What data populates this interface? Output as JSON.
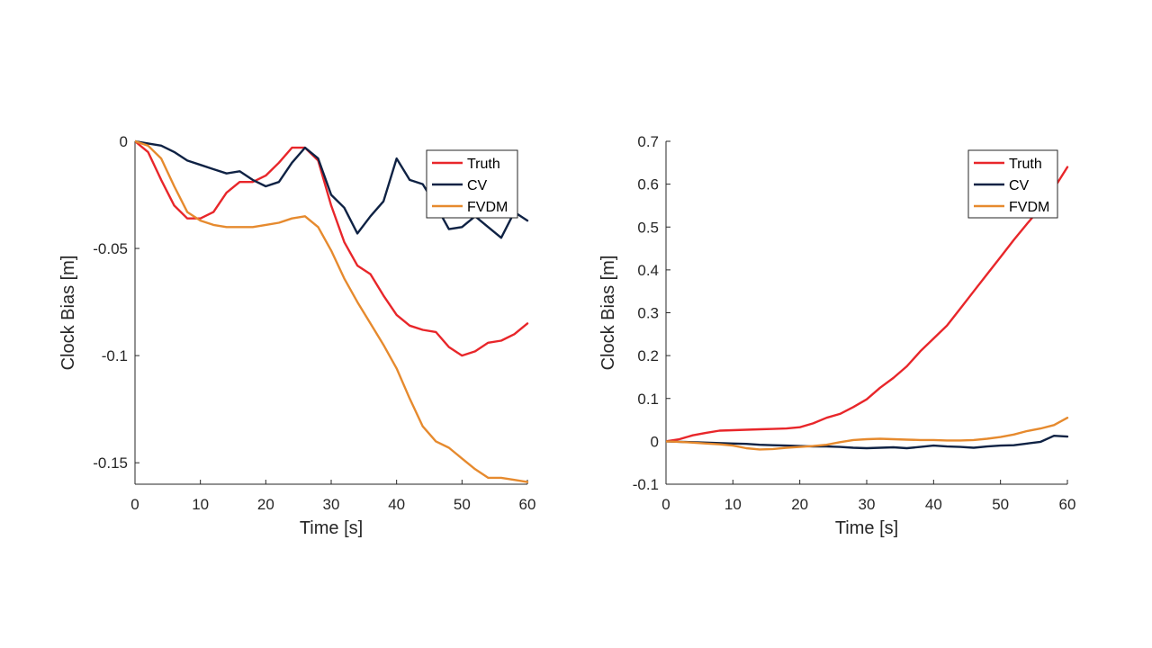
{
  "chart_data": [
    {
      "type": "line",
      "xlabel": "Time [s]",
      "ylabel": "Clock Bias [m]",
      "xlim": [
        0,
        60
      ],
      "ylim": [
        -0.16,
        0
      ],
      "xticks": [
        0,
        10,
        20,
        30,
        40,
        50,
        60
      ],
      "yticks": [
        0,
        -0.05,
        -0.1,
        -0.15
      ],
      "ytick_labels": [
        "0",
        "-0.05",
        "-0.1",
        "-0.15"
      ],
      "legend": "top-right",
      "grid": false,
      "series": [
        {
          "name": "Truth",
          "color": "#e8262a",
          "x": [
            0,
            2,
            4,
            6,
            8,
            10,
            12,
            14,
            16,
            18,
            20,
            22,
            24,
            26,
            28,
            30,
            32,
            34,
            36,
            38,
            40,
            42,
            44,
            46,
            48,
            50,
            52,
            54,
            56,
            58,
            60
          ],
          "y": [
            0,
            -0.005,
            -0.018,
            -0.03,
            -0.036,
            -0.036,
            -0.033,
            -0.024,
            -0.019,
            -0.019,
            -0.016,
            -0.01,
            -0.003,
            -0.003,
            -0.009,
            -0.03,
            -0.047,
            -0.058,
            -0.062,
            -0.072,
            -0.081,
            -0.086,
            -0.088,
            -0.089,
            -0.096,
            -0.1,
            -0.098,
            -0.094,
            -0.093,
            -0.09,
            -0.085
          ]
        },
        {
          "name": "CV",
          "color": "#0f2244",
          "x": [
            0,
            2,
            4,
            6,
            8,
            10,
            12,
            14,
            16,
            18,
            20,
            22,
            24,
            26,
            28,
            30,
            32,
            34,
            36,
            38,
            40,
            42,
            44,
            46,
            48,
            50,
            52,
            54,
            56,
            58,
            60
          ],
          "y": [
            0,
            -0.001,
            -0.002,
            -0.005,
            -0.009,
            -0.011,
            -0.013,
            -0.015,
            -0.014,
            -0.018,
            -0.021,
            -0.019,
            -0.01,
            -0.003,
            -0.008,
            -0.025,
            -0.031,
            -0.043,
            -0.035,
            -0.028,
            -0.008,
            -0.018,
            -0.02,
            -0.03,
            -0.041,
            -0.04,
            -0.035,
            -0.04,
            -0.045,
            -0.033,
            -0.037
          ]
        },
        {
          "name": "FVDM",
          "color": "#e68a2e",
          "x": [
            0,
            2,
            4,
            6,
            8,
            10,
            12,
            14,
            16,
            18,
            20,
            22,
            24,
            26,
            28,
            30,
            32,
            34,
            36,
            38,
            40,
            42,
            44,
            46,
            48,
            50,
            52,
            54,
            56,
            58,
            60
          ],
          "y": [
            0,
            -0.002,
            -0.008,
            -0.021,
            -0.033,
            -0.037,
            -0.039,
            -0.04,
            -0.04,
            -0.04,
            -0.039,
            -0.038,
            -0.036,
            -0.035,
            -0.04,
            -0.051,
            -0.064,
            -0.075,
            -0.085,
            -0.095,
            -0.106,
            -0.12,
            -0.133,
            -0.14,
            -0.143,
            -0.148,
            -0.153,
            -0.157,
            -0.157,
            -0.158,
            -0.159
          ]
        }
      ]
    },
    {
      "type": "line",
      "xlabel": "Time [s]",
      "ylabel": "Clock Bias [m]",
      "xlim": [
        0,
        60
      ],
      "ylim": [
        -0.1,
        0.7
      ],
      "xticks": [
        0,
        10,
        20,
        30,
        40,
        50,
        60
      ],
      "yticks": [
        -0.1,
        0,
        0.1,
        0.2,
        0.3,
        0.4,
        0.5,
        0.6,
        0.7
      ],
      "ytick_labels": [
        "-0.1",
        "0",
        "0.1",
        "0.2",
        "0.3",
        "0.4",
        "0.5",
        "0.6",
        "0.7"
      ],
      "legend": "top-right",
      "grid": false,
      "series": [
        {
          "name": "Truth",
          "color": "#e8262a",
          "x": [
            0,
            2,
            4,
            6,
            8,
            10,
            12,
            14,
            16,
            18,
            20,
            22,
            24,
            26,
            28,
            30,
            32,
            34,
            36,
            38,
            40,
            42,
            44,
            46,
            48,
            50,
            52,
            54,
            56,
            58,
            60
          ],
          "y": [
            0,
            0.005,
            0.014,
            0.02,
            0.025,
            0.026,
            0.027,
            0.028,
            0.029,
            0.03,
            0.033,
            0.042,
            0.055,
            0.064,
            0.08,
            0.098,
            0.125,
            0.148,
            0.175,
            0.21,
            0.24,
            0.27,
            0.31,
            0.35,
            0.39,
            0.43,
            0.47,
            0.508,
            0.545,
            0.59,
            0.64
          ]
        },
        {
          "name": "CV",
          "color": "#0f2244",
          "x": [
            0,
            2,
            4,
            6,
            8,
            10,
            12,
            14,
            16,
            18,
            20,
            22,
            24,
            26,
            28,
            30,
            32,
            34,
            36,
            38,
            40,
            42,
            44,
            46,
            48,
            50,
            52,
            54,
            56,
            58,
            60
          ],
          "y": [
            0,
            -0.001,
            -0.002,
            -0.003,
            -0.004,
            -0.005,
            -0.006,
            -0.008,
            -0.009,
            -0.01,
            -0.011,
            -0.012,
            -0.012,
            -0.013,
            -0.015,
            -0.016,
            -0.015,
            -0.014,
            -0.016,
            -0.013,
            -0.01,
            -0.012,
            -0.013,
            -0.015,
            -0.012,
            -0.01,
            -0.009,
            -0.005,
            -0.001,
            0.013,
            0.011
          ]
        },
        {
          "name": "FVDM",
          "color": "#e68a2e",
          "x": [
            0,
            2,
            4,
            6,
            8,
            10,
            12,
            14,
            16,
            18,
            20,
            22,
            24,
            26,
            28,
            30,
            32,
            34,
            36,
            38,
            40,
            42,
            44,
            46,
            48,
            50,
            52,
            54,
            56,
            58,
            60
          ],
          "y": [
            0,
            -0.001,
            -0.003,
            -0.005,
            -0.007,
            -0.01,
            -0.016,
            -0.019,
            -0.018,
            -0.015,
            -0.013,
            -0.011,
            -0.008,
            -0.002,
            0.003,
            0.005,
            0.006,
            0.005,
            0.004,
            0.003,
            0.003,
            0.002,
            0.002,
            0.003,
            0.006,
            0.01,
            0.016,
            0.024,
            0.03,
            0.038,
            0.055
          ]
        }
      ]
    }
  ]
}
